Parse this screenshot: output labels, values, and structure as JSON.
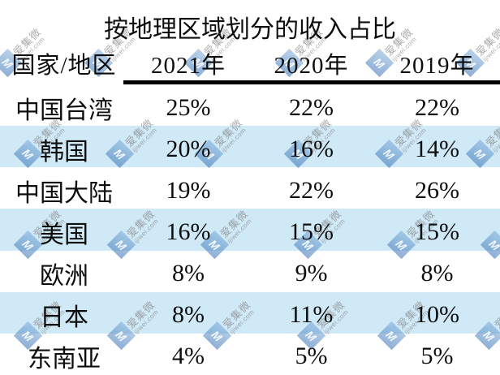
{
  "chart_data": {
    "type": "table",
    "title": "按地理区域划分的收入占比",
    "columns": [
      "国家/地区",
      "2021年",
      "2020年",
      "2019年"
    ],
    "rows": [
      [
        "中国台湾",
        "25%",
        "22%",
        "22%"
      ],
      [
        "韩国",
        "20%",
        "16%",
        "14%"
      ],
      [
        "中国大陆",
        "19%",
        "22%",
        "26%"
      ],
      [
        "美国",
        "16%",
        "15%",
        "15%"
      ],
      [
        "欧洲",
        "8%",
        "9%",
        "8%"
      ],
      [
        "日本",
        "8%",
        "11%",
        "10%"
      ],
      [
        "东南亚",
        "4%",
        "5%",
        "5%"
      ]
    ],
    "layout_hints": {
      "striped_row_indices": [
        1,
        3,
        5
      ],
      "header_rule_under_year_columns": true,
      "grid": "none"
    }
  },
  "watermark": {
    "brand": "爱集微",
    "domain": "ijiwei.com",
    "logo_letter": "M"
  },
  "colors": {
    "stripe": "#cfe9f6",
    "rule": "#000000",
    "text": "#0e0e0e",
    "watermark_blue": "#3c76b4",
    "watermark_gray": "#8a8a8a"
  }
}
